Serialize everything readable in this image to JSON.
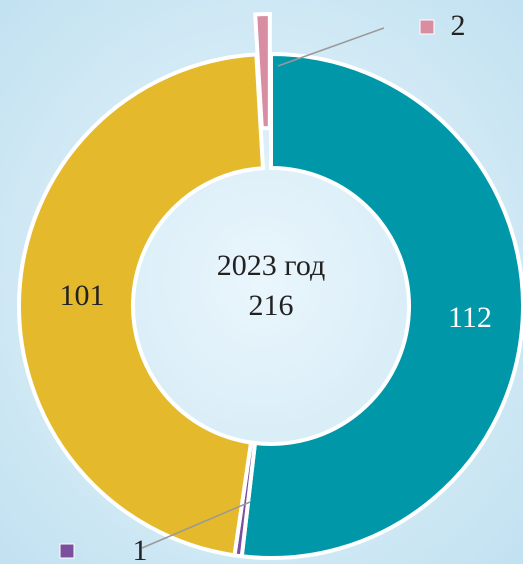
{
  "chart_data": {
    "type": "donut",
    "title": "2023 год",
    "total": 216,
    "values": [
      112,
      1,
      101,
      2
    ],
    "colors": [
      "#0097a9",
      "#7a4f9d",
      "#e4b92c",
      "#d98da2"
    ],
    "exploded": [
      false,
      false,
      false,
      true
    ]
  }
}
